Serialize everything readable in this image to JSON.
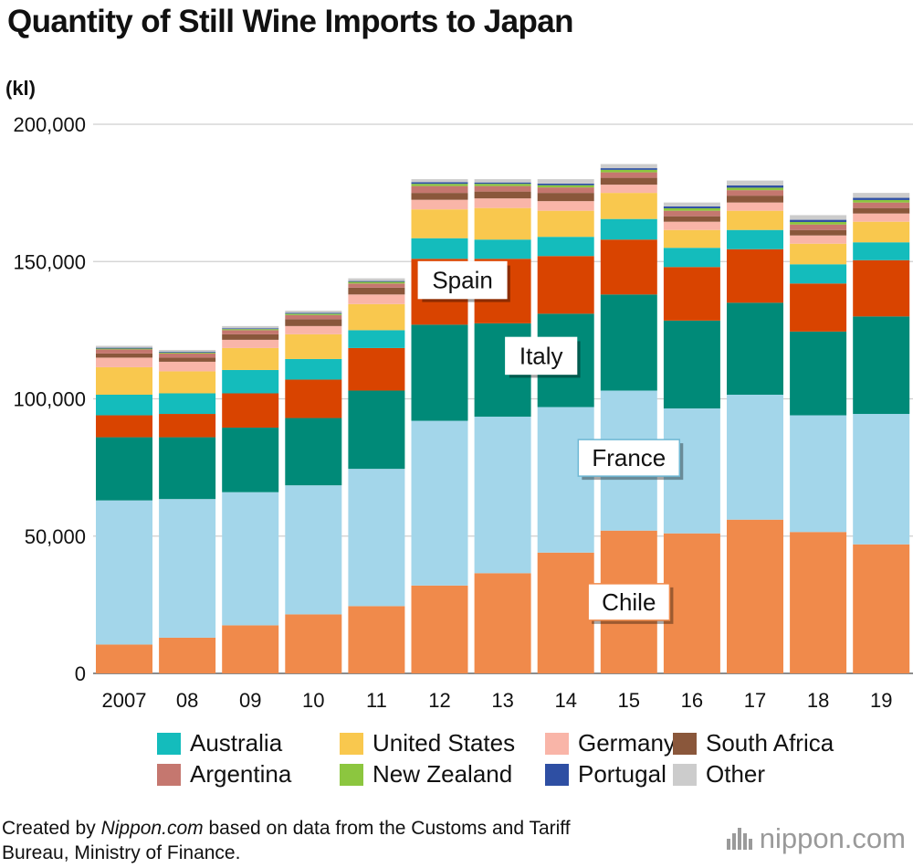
{
  "title": "Quantity of Still Wine Imports to Japan",
  "unit_label": "(kl)",
  "source_prefix": "Created by ",
  "source_site": "Nippon.com",
  "source_rest": " based on data from the Customs and Tariff",
  "source_line2": "Bureau, Ministry of Finance.",
  "brand": "nippon.com",
  "chart_data": {
    "type": "bar",
    "stacked": true,
    "categories": [
      "2007",
      "08",
      "09",
      "10",
      "11",
      "12",
      "13",
      "14",
      "15",
      "16",
      "17",
      "18",
      "19"
    ],
    "ylim": [
      0,
      200000
    ],
    "y_ticks": [
      0,
      50000,
      100000,
      150000,
      200000
    ],
    "y_tick_labels": [
      "0",
      "50,000",
      "100,000",
      "150,000",
      "200,000"
    ],
    "grid": true,
    "legend_position": "bottom",
    "series": [
      {
        "name": "Chile",
        "color": "#f08a4b",
        "values": [
          10500,
          13000,
          17500,
          21500,
          24500,
          32000,
          36500,
          44000,
          52000,
          51000,
          56000,
          51500,
          47000
        ]
      },
      {
        "name": "France",
        "color": "#a3d6ea",
        "values": [
          52500,
          50500,
          48500,
          47000,
          50000,
          60000,
          57000,
          53000,
          51000,
          45500,
          45500,
          42500,
          47500
        ]
      },
      {
        "name": "Italy",
        "color": "#008a78",
        "values": [
          23000,
          22500,
          23500,
          24500,
          28500,
          35000,
          34000,
          34000,
          35000,
          32000,
          33500,
          30500,
          35500
        ]
      },
      {
        "name": "Spain",
        "color": "#d94400",
        "values": [
          8000,
          8500,
          12500,
          14000,
          15500,
          24000,
          23500,
          21000,
          20000,
          19500,
          19500,
          17500,
          20500
        ]
      },
      {
        "name": "Australia",
        "color": "#14bcbc",
        "values": [
          7500,
          7500,
          8500,
          7500,
          6500,
          7500,
          7000,
          7000,
          7500,
          7000,
          7000,
          7000,
          6500
        ]
      },
      {
        "name": "United States",
        "color": "#f9c84e",
        "values": [
          10000,
          8000,
          8000,
          9000,
          9500,
          10500,
          11500,
          9500,
          9500,
          6500,
          7000,
          7500,
          7500
        ]
      },
      {
        "name": "Germany",
        "color": "#f9b5a8",
        "values": [
          3500,
          3500,
          3000,
          3000,
          3500,
          3500,
          3500,
          3500,
          3000,
          3000,
          3000,
          3000,
          3000
        ]
      },
      {
        "name": "South Africa",
        "color": "#8a573b",
        "values": [
          1500,
          1500,
          2000,
          2500,
          2500,
          2500,
          2500,
          3000,
          2500,
          2000,
          2500,
          2000,
          2000
        ]
      },
      {
        "name": "Argentina",
        "color": "#c5776f",
        "values": [
          1500,
          1500,
          1500,
          1500,
          1500,
          2500,
          2000,
          2000,
          2000,
          2000,
          2000,
          2000,
          2000
        ]
      },
      {
        "name": "New Zealand",
        "color": "#8cc63f",
        "values": [
          300,
          300,
          400,
          500,
          600,
          800,
          800,
          800,
          900,
          900,
          900,
          900,
          900
        ]
      },
      {
        "name": "Portugal",
        "color": "#2e4fa3",
        "values": [
          300,
          300,
          300,
          300,
          300,
          600,
          500,
          600,
          600,
          700,
          800,
          800,
          800
        ]
      },
      {
        "name": "Other",
        "color": "#cccccc",
        "values": [
          700,
          700,
          800,
          800,
          1000,
          1100,
          1200,
          1600,
          1500,
          1400,
          1800,
          1700,
          1800
        ]
      }
    ],
    "callouts": [
      {
        "label": "Spain",
        "series": "Spain",
        "category": "13"
      },
      {
        "label": "Italy",
        "series": "Italy",
        "category": "14"
      },
      {
        "label": "France",
        "series": "France",
        "category": "15"
      },
      {
        "label": "Chile",
        "series": "Chile",
        "category": "15"
      }
    ],
    "legend": [
      "Australia",
      "United States",
      "Germany",
      "South Africa",
      "Argentina",
      "New Zealand",
      "Portugal",
      "Other"
    ]
  }
}
